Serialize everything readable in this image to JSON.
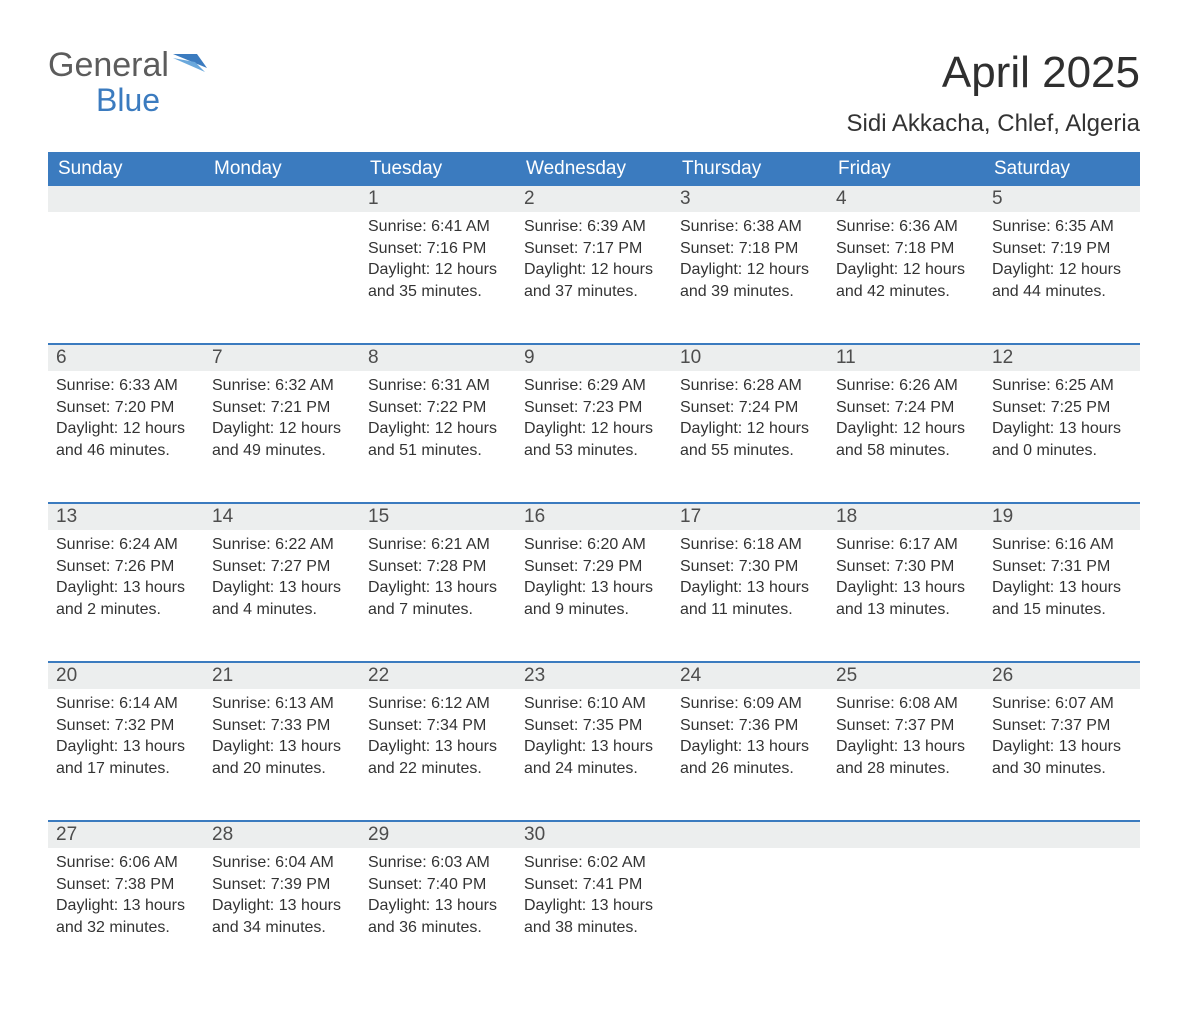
{
  "logo": {
    "general": "General",
    "blue": "Blue"
  },
  "title": "April 2025",
  "location": "Sidi Akkacha, Chlef, Algeria",
  "colors": {
    "brand_blue": "#3b7bbf",
    "header_bg": "#3b7bbf",
    "header_text": "#ffffff",
    "daynum_bg": "#eceeee",
    "body_text": "#333333",
    "logo_gray": "#5c5c5c"
  },
  "day_names": [
    "Sunday",
    "Monday",
    "Tuesday",
    "Wednesday",
    "Thursday",
    "Friday",
    "Saturday"
  ],
  "weeks": [
    [
      null,
      null,
      {
        "n": "1",
        "sunrise": "6:41 AM",
        "sunset": "7:16 PM",
        "daylight": "12 hours and 35 minutes."
      },
      {
        "n": "2",
        "sunrise": "6:39 AM",
        "sunset": "7:17 PM",
        "daylight": "12 hours and 37 minutes."
      },
      {
        "n": "3",
        "sunrise": "6:38 AM",
        "sunset": "7:18 PM",
        "daylight": "12 hours and 39 minutes."
      },
      {
        "n": "4",
        "sunrise": "6:36 AM",
        "sunset": "7:18 PM",
        "daylight": "12 hours and 42 minutes."
      },
      {
        "n": "5",
        "sunrise": "6:35 AM",
        "sunset": "7:19 PM",
        "daylight": "12 hours and 44 minutes."
      }
    ],
    [
      {
        "n": "6",
        "sunrise": "6:33 AM",
        "sunset": "7:20 PM",
        "daylight": "12 hours and 46 minutes."
      },
      {
        "n": "7",
        "sunrise": "6:32 AM",
        "sunset": "7:21 PM",
        "daylight": "12 hours and 49 minutes."
      },
      {
        "n": "8",
        "sunrise": "6:31 AM",
        "sunset": "7:22 PM",
        "daylight": "12 hours and 51 minutes."
      },
      {
        "n": "9",
        "sunrise": "6:29 AM",
        "sunset": "7:23 PM",
        "daylight": "12 hours and 53 minutes."
      },
      {
        "n": "10",
        "sunrise": "6:28 AM",
        "sunset": "7:24 PM",
        "daylight": "12 hours and 55 minutes."
      },
      {
        "n": "11",
        "sunrise": "6:26 AM",
        "sunset": "7:24 PM",
        "daylight": "12 hours and 58 minutes."
      },
      {
        "n": "12",
        "sunrise": "6:25 AM",
        "sunset": "7:25 PM",
        "daylight": "13 hours and 0 minutes."
      }
    ],
    [
      {
        "n": "13",
        "sunrise": "6:24 AM",
        "sunset": "7:26 PM",
        "daylight": "13 hours and 2 minutes."
      },
      {
        "n": "14",
        "sunrise": "6:22 AM",
        "sunset": "7:27 PM",
        "daylight": "13 hours and 4 minutes."
      },
      {
        "n": "15",
        "sunrise": "6:21 AM",
        "sunset": "7:28 PM",
        "daylight": "13 hours and 7 minutes."
      },
      {
        "n": "16",
        "sunrise": "6:20 AM",
        "sunset": "7:29 PM",
        "daylight": "13 hours and 9 minutes."
      },
      {
        "n": "17",
        "sunrise": "6:18 AM",
        "sunset": "7:30 PM",
        "daylight": "13 hours and 11 minutes."
      },
      {
        "n": "18",
        "sunrise": "6:17 AM",
        "sunset": "7:30 PM",
        "daylight": "13 hours and 13 minutes."
      },
      {
        "n": "19",
        "sunrise": "6:16 AM",
        "sunset": "7:31 PM",
        "daylight": "13 hours and 15 minutes."
      }
    ],
    [
      {
        "n": "20",
        "sunrise": "6:14 AM",
        "sunset": "7:32 PM",
        "daylight": "13 hours and 17 minutes."
      },
      {
        "n": "21",
        "sunrise": "6:13 AM",
        "sunset": "7:33 PM",
        "daylight": "13 hours and 20 minutes."
      },
      {
        "n": "22",
        "sunrise": "6:12 AM",
        "sunset": "7:34 PM",
        "daylight": "13 hours and 22 minutes."
      },
      {
        "n": "23",
        "sunrise": "6:10 AM",
        "sunset": "7:35 PM",
        "daylight": "13 hours and 24 minutes."
      },
      {
        "n": "24",
        "sunrise": "6:09 AM",
        "sunset": "7:36 PM",
        "daylight": "13 hours and 26 minutes."
      },
      {
        "n": "25",
        "sunrise": "6:08 AM",
        "sunset": "7:37 PM",
        "daylight": "13 hours and 28 minutes."
      },
      {
        "n": "26",
        "sunrise": "6:07 AM",
        "sunset": "7:37 PM",
        "daylight": "13 hours and 30 minutes."
      }
    ],
    [
      {
        "n": "27",
        "sunrise": "6:06 AM",
        "sunset": "7:38 PM",
        "daylight": "13 hours and 32 minutes."
      },
      {
        "n": "28",
        "sunrise": "6:04 AM",
        "sunset": "7:39 PM",
        "daylight": "13 hours and 34 minutes."
      },
      {
        "n": "29",
        "sunrise": "6:03 AM",
        "sunset": "7:40 PM",
        "daylight": "13 hours and 36 minutes."
      },
      {
        "n": "30",
        "sunrise": "6:02 AM",
        "sunset": "7:41 PM",
        "daylight": "13 hours and 38 minutes."
      },
      null,
      null,
      null
    ]
  ],
  "labels": {
    "sunrise": "Sunrise: ",
    "sunset": "Sunset: ",
    "daylight": "Daylight: "
  }
}
